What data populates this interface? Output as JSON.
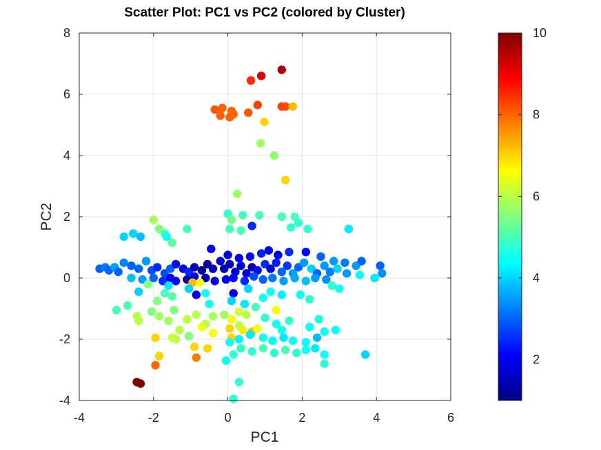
{
  "chart_data": {
    "type": "scatter",
    "title": "Scatter Plot: PC1 vs PC2 (colored by Cluster)",
    "xlabel": "PC1",
    "ylabel": "PC2",
    "xlim": [
      -4,
      6
    ],
    "ylim": [
      -4,
      8
    ],
    "xticks": [
      -4,
      -2,
      0,
      2,
      4,
      6
    ],
    "yticks": [
      -4,
      -2,
      0,
      2,
      4,
      6,
      8
    ],
    "grid": true,
    "colormap": "jet",
    "color_variable": "Cluster",
    "colorbar": {
      "range": [
        1,
        10
      ],
      "ticks": [
        2,
        4,
        6,
        8,
        10
      ],
      "placement": "right"
    },
    "points": [
      [
        1.45,
        6.8,
        9.6
      ],
      [
        0.9,
        6.6,
        9.2
      ],
      [
        0.62,
        6.45,
        8.5
      ],
      [
        0.8,
        5.65,
        8.3
      ],
      [
        1.45,
        5.6,
        8.3
      ],
      [
        1.55,
        5.6,
        8.2
      ],
      [
        1.75,
        5.6,
        7.2
      ],
      [
        -0.35,
        5.5,
        8.1
      ],
      [
        -0.15,
        5.55,
        8.0
      ],
      [
        0.1,
        5.45,
        8.0
      ],
      [
        0.15,
        5.35,
        8.0
      ],
      [
        0.55,
        5.4,
        8.1
      ],
      [
        -0.2,
        5.3,
        8.0
      ],
      [
        0.05,
        5.25,
        8.0
      ],
      [
        0.98,
        5.1,
        7.0
      ],
      [
        0.88,
        4.4,
        5.8
      ],
      [
        1.25,
        4.0,
        5.6
      ],
      [
        1.55,
        3.2,
        7.0
      ],
      [
        0.25,
        2.75,
        5.8
      ],
      [
        0.0,
        2.1,
        4.8
      ],
      [
        0.4,
        2.05,
        5.0
      ],
      [
        0.85,
        2.05,
        5.0
      ],
      [
        1.45,
        2.0,
        5.0
      ],
      [
        1.8,
        2.0,
        5.0
      ],
      [
        1.9,
        1.8,
        4.8
      ],
      [
        1.7,
        1.65,
        4.8
      ],
      [
        2.15,
        1.6,
        4.8
      ],
      [
        3.25,
        1.6,
        4.2
      ],
      [
        0.1,
        1.9,
        5.4
      ],
      [
        0.05,
        1.6,
        5.0
      ],
      [
        0.35,
        1.55,
        5.0
      ],
      [
        0.65,
        1.7,
        2.5
      ],
      [
        -2.0,
        1.9,
        5.8
      ],
      [
        -1.85,
        1.6,
        5.5
      ],
      [
        -1.7,
        1.45,
        5.0
      ],
      [
        -1.65,
        1.35,
        4.5
      ],
      [
        -1.1,
        1.6,
        5.0
      ],
      [
        -1.5,
        1.15,
        5.2
      ],
      [
        -2.55,
        1.45,
        4.0
      ],
      [
        -2.8,
        1.35,
        4.0
      ],
      [
        -2.35,
        1.35,
        3.8
      ],
      [
        -0.45,
        0.95,
        2.0
      ],
      [
        0.0,
        0.75,
        2.0
      ],
      [
        0.3,
        0.65,
        2.0
      ],
      [
        0.6,
        0.7,
        2.2
      ],
      [
        0.9,
        0.8,
        2.4
      ],
      [
        1.1,
        0.9,
        2.0
      ],
      [
        1.35,
        0.75,
        2.0
      ],
      [
        1.65,
        0.85,
        2.5
      ],
      [
        2.1,
        0.85,
        2.2
      ],
      [
        2.5,
        0.7,
        3.0
      ],
      [
        2.85,
        0.55,
        3.5
      ],
      [
        3.15,
        0.5,
        3.2
      ],
      [
        3.45,
        0.4,
        3.5
      ],
      [
        3.6,
        0.55,
        3.0
      ],
      [
        4.1,
        0.4,
        3.0
      ],
      [
        4.15,
        0.15,
        3.4
      ],
      [
        3.95,
        0.0,
        4.2
      ],
      [
        -3.45,
        0.3,
        3.0
      ],
      [
        -3.3,
        0.35,
        3.2
      ],
      [
        -3.2,
        0.25,
        3.0
      ],
      [
        -3.05,
        0.35,
        3.5
      ],
      [
        -2.95,
        0.2,
        3.0
      ],
      [
        -2.8,
        0.5,
        3.3
      ],
      [
        -2.6,
        0.4,
        3.0
      ],
      [
        -2.4,
        0.3,
        3.0
      ],
      [
        -2.2,
        0.55,
        3.5
      ],
      [
        -2.05,
        0.25,
        2.8
      ],
      [
        -1.9,
        0.35,
        2.5
      ],
      [
        -1.7,
        0.15,
        2.8
      ],
      [
        -1.55,
        0.3,
        3.0
      ],
      [
        -1.4,
        0.45,
        2.2
      ],
      [
        -1.2,
        0.3,
        2.0
      ],
      [
        -1.05,
        0.2,
        2.5
      ],
      [
        -0.9,
        0.35,
        1.5
      ],
      [
        -0.7,
        0.25,
        1.2
      ],
      [
        -0.55,
        0.45,
        1.3
      ],
      [
        -0.4,
        0.3,
        1.5
      ],
      [
        -0.2,
        0.55,
        1.8
      ],
      [
        -0.1,
        0.3,
        1.4
      ],
      [
        0.05,
        0.45,
        1.5
      ],
      [
        0.2,
        0.2,
        1.6
      ],
      [
        0.35,
        0.4,
        1.8
      ],
      [
        0.5,
        0.15,
        2.0
      ],
      [
        0.65,
        0.35,
        1.5
      ],
      [
        0.8,
        0.25,
        2.2
      ],
      [
        1.0,
        0.45,
        2.5
      ],
      [
        1.15,
        0.3,
        1.8
      ],
      [
        1.3,
        0.5,
        2.4
      ],
      [
        1.45,
        0.2,
        3.0
      ],
      [
        1.6,
        0.4,
        2.6
      ],
      [
        1.75,
        0.15,
        3.5
      ],
      [
        1.9,
        0.35,
        3.0
      ],
      [
        2.05,
        0.5,
        3.5
      ],
      [
        2.25,
        0.3,
        4.0
      ],
      [
        2.4,
        0.15,
        3.0
      ],
      [
        2.6,
        0.4,
        3.5
      ],
      [
        2.75,
        0.2,
        3.2
      ],
      [
        2.95,
        0.3,
        4.0
      ],
      [
        3.2,
        0.15,
        3.5
      ],
      [
        3.55,
        0.1,
        4.5
      ],
      [
        -1.1,
        -0.05,
        1.2
      ],
      [
        -0.9,
        0.05,
        2.0
      ],
      [
        -0.6,
        0.0,
        1.5
      ],
      [
        -0.35,
        -0.1,
        1.8
      ],
      [
        -0.05,
        -0.05,
        2.0
      ],
      [
        0.15,
        0.0,
        2.2
      ],
      [
        0.45,
        -0.1,
        2.5
      ],
      [
        0.7,
        0.05,
        2.8
      ],
      [
        0.95,
        -0.05,
        3.0
      ],
      [
        1.2,
        0.0,
        3.2
      ],
      [
        1.5,
        -0.1,
        3.5
      ],
      [
        1.8,
        0.0,
        3.6
      ],
      [
        2.1,
        -0.1,
        3.8
      ],
      [
        2.35,
        0.0,
        3.5
      ],
      [
        2.65,
        -0.05,
        3.4
      ],
      [
        -2.6,
        0.0,
        3.8
      ],
      [
        -2.3,
        -0.05,
        3.5
      ],
      [
        -2.0,
        0.0,
        3.0
      ],
      [
        -1.75,
        -0.1,
        2.5
      ],
      [
        -1.55,
        0.0,
        2.0
      ],
      [
        -1.4,
        -0.1,
        2.0
      ],
      [
        -1.6,
        -0.25,
        4.2
      ],
      [
        -2.15,
        -0.2,
        5.5
      ],
      [
        -0.95,
        -0.15,
        7.2
      ],
      [
        -0.75,
        -0.15,
        6.5
      ],
      [
        -1.05,
        -0.35,
        4.0
      ],
      [
        -0.85,
        -0.55,
        2.0
      ],
      [
        -0.6,
        -0.5,
        4.5
      ],
      [
        0.15,
        -0.5,
        2.0
      ],
      [
        0.55,
        -0.35,
        4.0
      ],
      [
        1.15,
        -0.45,
        4.5
      ],
      [
        1.95,
        -0.55,
        4.5
      ],
      [
        2.2,
        -0.7,
        4.8
      ],
      [
        2.8,
        -0.25,
        4.8
      ],
      [
        3.0,
        -0.35,
        4.5
      ],
      [
        -2.4,
        -0.45,
        4.0
      ],
      [
        -2.7,
        -0.9,
        5.0
      ],
      [
        -3.0,
        -1.05,
        5.0
      ],
      [
        -1.7,
        -0.5,
        5.0
      ],
      [
        -1.9,
        -0.75,
        5.5
      ],
      [
        -1.5,
        -0.6,
        5.2
      ],
      [
        -0.5,
        -0.85,
        4.5
      ],
      [
        0.1,
        -0.75,
        4.0
      ],
      [
        0.45,
        -0.85,
        4.2
      ],
      [
        0.95,
        -0.65,
        4.5
      ],
      [
        0.75,
        -0.95,
        5.0
      ],
      [
        1.45,
        -0.55,
        4.3
      ],
      [
        -2.05,
        -1.1,
        5.5
      ],
      [
        -2.45,
        -1.25,
        6.0
      ],
      [
        -2.4,
        -1.4,
        6.0
      ],
      [
        -1.85,
        -1.25,
        5.8
      ],
      [
        -1.6,
        -1.4,
        5.8
      ],
      [
        -1.45,
        -1.05,
        5.5
      ],
      [
        -1.1,
        -1.35,
        6.0
      ],
      [
        -0.85,
        -1.2,
        6.0
      ],
      [
        -0.6,
        -1.5,
        6.0
      ],
      [
        -0.4,
        -1.25,
        5.8
      ],
      [
        -0.1,
        -1.2,
        5.8
      ],
      [
        0.3,
        -1.1,
        6.2
      ],
      [
        0.1,
        -1.35,
        6.5
      ],
      [
        0.5,
        -1.2,
        6.0
      ],
      [
        0.3,
        -1.55,
        6.0
      ],
      [
        0.05,
        -1.65,
        7.0
      ],
      [
        -0.4,
        -1.8,
        6.5
      ],
      [
        -0.7,
        -1.6,
        6.5
      ],
      [
        -1.3,
        -1.7,
        6.0
      ],
      [
        -1.5,
        -1.95,
        6.2
      ],
      [
        -1.95,
        -1.95,
        7.0
      ],
      [
        -1.4,
        -2.0,
        6.0
      ],
      [
        -1.05,
        -1.9,
        5.5
      ],
      [
        0.1,
        -1.95,
        7.0
      ],
      [
        0.4,
        -1.7,
        6.8
      ],
      [
        0.65,
        -1.75,
        7.2
      ],
      [
        0.8,
        -1.65,
        6.5
      ],
      [
        1.0,
        -1.3,
        4.8
      ],
      [
        1.3,
        -1.5,
        4.5
      ],
      [
        1.65,
        -1.4,
        4.8
      ],
      [
        1.45,
        -1.7,
        4.5
      ],
      [
        1.3,
        -1.05,
        6.5
      ],
      [
        2.45,
        -1.35,
        4.6
      ],
      [
        2.2,
        -1.6,
        4.5
      ],
      [
        2.9,
        -1.7,
        4.5
      ],
      [
        2.6,
        -1.75,
        4.5
      ],
      [
        2.4,
        -1.95,
        3.8
      ],
      [
        2.1,
        -2.1,
        4.4
      ],
      [
        1.75,
        -2.05,
        4.5
      ],
      [
        1.5,
        -1.95,
        4.2
      ],
      [
        1.2,
        -2.05,
        4.4
      ],
      [
        0.95,
        -1.95,
        4.5
      ],
      [
        0.6,
        -1.85,
        4.2
      ],
      [
        0.3,
        -2.0,
        4.3
      ],
      [
        0.05,
        -2.1,
        4.5
      ],
      [
        0.35,
        -2.3,
        4.8
      ],
      [
        0.65,
        -2.4,
        4.8
      ],
      [
        0.95,
        -2.3,
        5.0
      ],
      [
        1.25,
        -2.45,
        4.8
      ],
      [
        1.55,
        -2.35,
        5.0
      ],
      [
        1.85,
        -2.45,
        4.8
      ],
      [
        2.1,
        -2.35,
        4.5
      ],
      [
        2.35,
        -2.3,
        4.2
      ],
      [
        2.6,
        -2.5,
        4.5
      ],
      [
        0.15,
        -2.5,
        4.8
      ],
      [
        -0.05,
        -2.7,
        4.5
      ],
      [
        -1.85,
        -2.55,
        7.0
      ],
      [
        -1.95,
        -2.85,
        8.0
      ],
      [
        -0.9,
        -2.25,
        7.0
      ],
      [
        -0.55,
        -2.3,
        7.0
      ],
      [
        -0.85,
        -2.6,
        7.8
      ],
      [
        3.7,
        -2.5,
        4.0
      ],
      [
        2.6,
        -2.8,
        4.8
      ],
      [
        0.3,
        -3.4,
        4.8
      ],
      [
        0.15,
        -3.95,
        4.8
      ],
      [
        -2.45,
        -3.4,
        10.0
      ],
      [
        -2.35,
        -3.45,
        10.0
      ]
    ]
  }
}
